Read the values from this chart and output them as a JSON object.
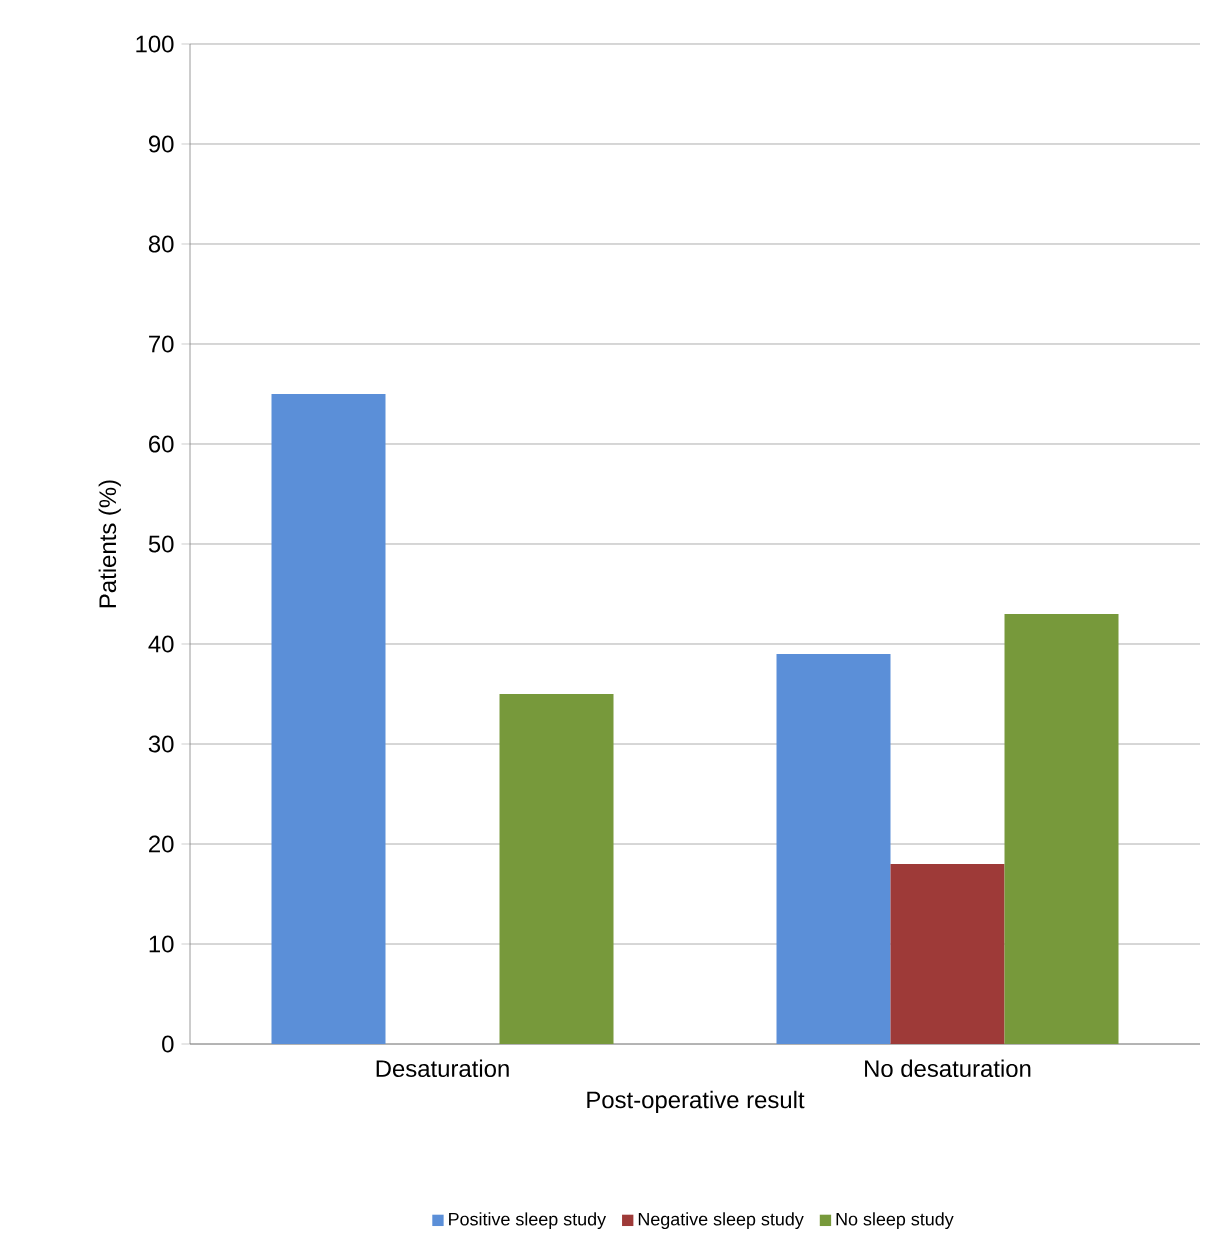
{
  "chart_data": {
    "type": "bar",
    "xlabel": "Post-operative result",
    "ylabel": "Patients (%)",
    "categories": [
      "Desaturation",
      "No desaturation"
    ],
    "series": [
      {
        "name": "Positive sleep study",
        "color": "#5b8fd8",
        "values": [
          65,
          39
        ]
      },
      {
        "name": "Negative sleep study",
        "color": "#9e3a38",
        "values": [
          0,
          18
        ]
      },
      {
        "name": "No sleep study",
        "color": "#77993b",
        "values": [
          35,
          43
        ]
      }
    ],
    "ylim": [
      0,
      100
    ],
    "yticks": [
      0,
      10,
      20,
      30,
      40,
      50,
      60,
      70,
      80,
      90,
      100
    ],
    "grid": "y",
    "legend": "bottom"
  }
}
